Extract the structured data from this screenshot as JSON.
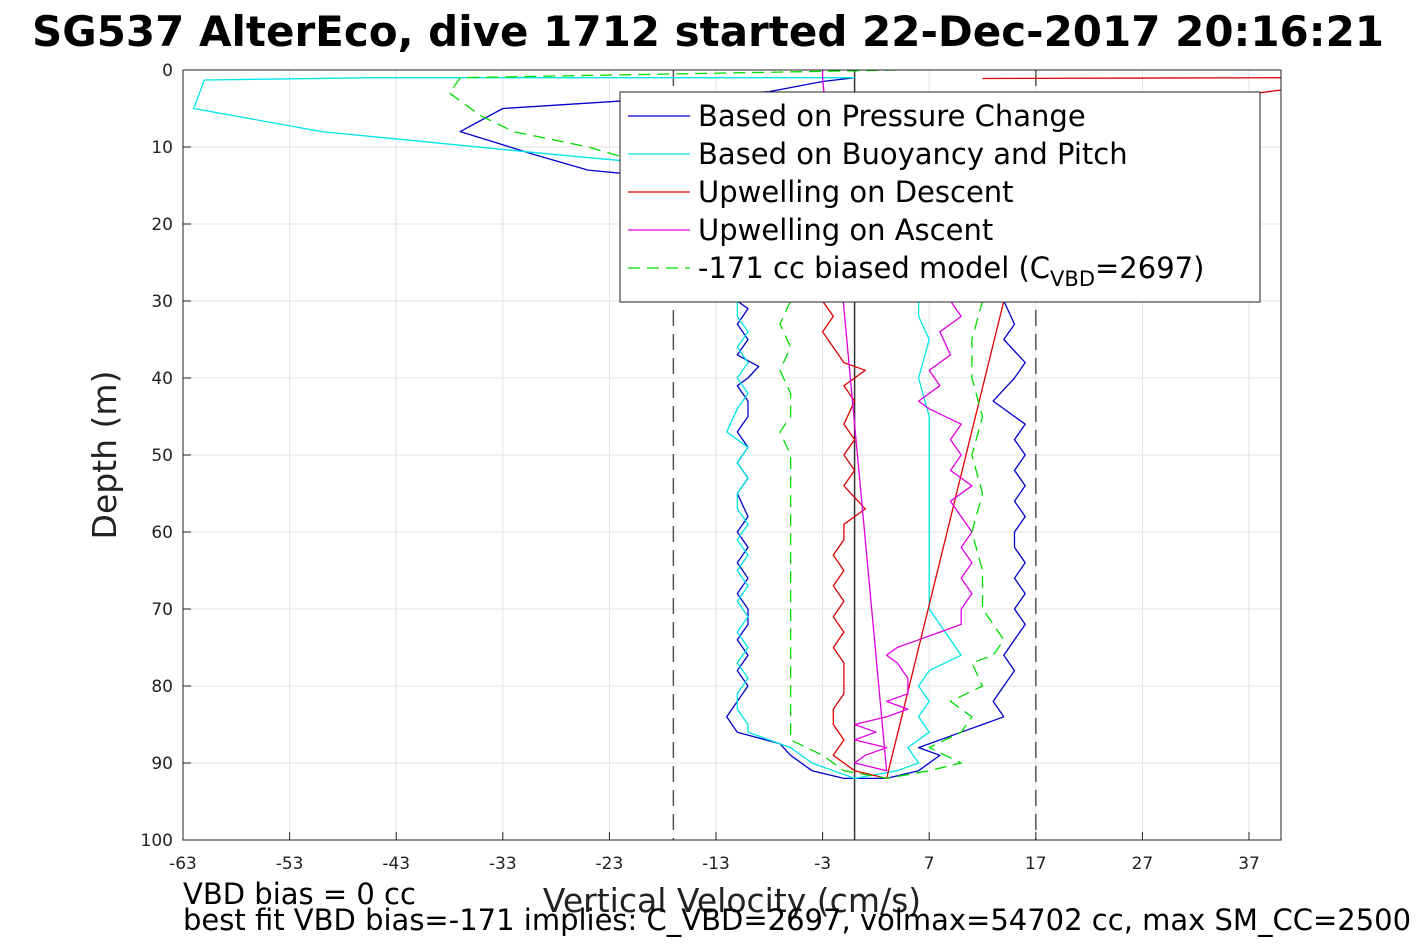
{
  "chart_data": {
    "type": "line",
    "title": "SG537 AlterEco, dive 1712 started 22-Dec-2017 20:16:21",
    "xlabel": "Vertical Velocity (cm/s)",
    "ylabel": "Depth (m)",
    "xlim": [
      -63,
      40
    ],
    "ylim": [
      0,
      100
    ],
    "y_reversed": true,
    "grid": true,
    "xticks": [
      "-63",
      "-53",
      "-43",
      "-33",
      "-23",
      "-13",
      "-3",
      "7",
      "17",
      "27",
      "37"
    ],
    "yticks": [
      "0",
      "10",
      "20",
      "30",
      "40",
      "50",
      "60",
      "70",
      "80",
      "90",
      "100"
    ],
    "legend_position": "top-right",
    "reference_lines": [
      {
        "x": -17,
        "style": "dashed",
        "color": "#555555"
      },
      {
        "x": 17,
        "style": "dashed",
        "color": "#555555"
      },
      {
        "x": 0,
        "style": "solid",
        "color": "#333333"
      }
    ],
    "series": [
      {
        "name": "Based on Pressure Change",
        "color": "#0000cc",
        "style": "solid",
        "points": [
          [
            0,
            1
          ],
          [
            -3,
            1.5
          ],
          [
            -8,
            2.8
          ],
          [
            -33,
            5
          ],
          [
            -37,
            8
          ],
          [
            -30,
            11
          ],
          [
            -25,
            13
          ],
          [
            -16,
            14.2
          ],
          [
            -11,
            30
          ],
          [
            -10,
            31
          ],
          [
            -11,
            33
          ],
          [
            -10,
            35
          ],
          [
            -11,
            37
          ],
          [
            -9,
            38.5
          ],
          [
            -10,
            40
          ],
          [
            -11,
            41
          ],
          [
            -10,
            43
          ],
          [
            -10,
            45
          ],
          [
            -11,
            47
          ],
          [
            -10,
            49
          ],
          [
            -11,
            51
          ],
          [
            -10,
            53
          ],
          [
            -11,
            55
          ],
          [
            -10,
            58
          ],
          [
            -11,
            60
          ],
          [
            -10,
            62
          ],
          [
            -11,
            64
          ],
          [
            -10,
            66
          ],
          [
            -11,
            68
          ],
          [
            -10,
            70
          ],
          [
            -10,
            72
          ],
          [
            -11,
            74
          ],
          [
            -10,
            76
          ],
          [
            -11,
            78
          ],
          [
            -10,
            80
          ],
          [
            -11,
            82
          ],
          [
            -12,
            84
          ],
          [
            -11,
            86
          ],
          [
            -7,
            87.5
          ],
          [
            -6,
            89
          ],
          [
            -4,
            91
          ],
          [
            -1,
            92
          ],
          [
            3,
            92
          ],
          [
            6,
            91
          ],
          [
            8,
            89
          ],
          [
            6,
            88
          ],
          [
            10,
            86
          ],
          [
            12,
            85
          ],
          [
            14,
            84
          ],
          [
            13,
            82
          ],
          [
            14,
            80
          ],
          [
            15,
            78
          ],
          [
            14,
            76
          ],
          [
            15,
            74
          ],
          [
            16,
            72
          ],
          [
            15,
            70
          ],
          [
            16,
            68
          ],
          [
            15,
            66
          ],
          [
            16,
            64
          ],
          [
            15,
            62
          ],
          [
            15,
            60
          ],
          [
            16,
            58
          ],
          [
            15,
            56
          ],
          [
            16,
            54
          ],
          [
            15,
            52
          ],
          [
            16,
            50
          ],
          [
            15,
            48
          ],
          [
            16,
            46
          ],
          [
            13,
            43
          ],
          [
            15,
            40
          ],
          [
            16,
            38
          ],
          [
            14,
            35
          ],
          [
            15,
            33
          ],
          [
            14,
            30
          ]
        ]
      },
      {
        "name": "Based on Buoyancy and Pitch",
        "color": "#00e6e6",
        "style": "solid",
        "points": [
          [
            0,
            1
          ],
          [
            -45,
            1
          ],
          [
            -61,
            1.3
          ],
          [
            -62,
            5
          ],
          [
            -50,
            8
          ],
          [
            -28,
            11
          ],
          [
            -20,
            12
          ],
          [
            -15,
            14
          ],
          [
            -11,
            30
          ],
          [
            -11,
            32
          ],
          [
            -10,
            34
          ],
          [
            -11,
            36
          ],
          [
            -10,
            38
          ],
          [
            -11,
            40
          ],
          [
            -10,
            42
          ],
          [
            -11,
            44
          ],
          [
            -12,
            47
          ],
          [
            -10,
            49
          ],
          [
            -11,
            51
          ],
          [
            -10,
            53
          ],
          [
            -11,
            55
          ],
          [
            -11,
            57
          ],
          [
            -10,
            59
          ],
          [
            -11,
            61
          ],
          [
            -10,
            63
          ],
          [
            -11,
            65
          ],
          [
            -10,
            67
          ],
          [
            -11,
            69
          ],
          [
            -10,
            71
          ],
          [
            -11,
            73
          ],
          [
            -10,
            75
          ],
          [
            -11,
            77
          ],
          [
            -10,
            79
          ],
          [
            -11,
            81
          ],
          [
            -11,
            83
          ],
          [
            -10,
            85
          ],
          [
            -10,
            86
          ],
          [
            -6,
            88
          ],
          [
            -4,
            90
          ],
          [
            -2,
            91
          ],
          [
            0,
            92
          ],
          [
            4,
            91
          ],
          [
            6,
            90
          ],
          [
            5,
            88
          ],
          [
            7,
            86
          ],
          [
            6,
            84
          ],
          [
            7,
            82
          ],
          [
            6,
            80
          ],
          [
            7,
            78
          ],
          [
            10,
            76
          ],
          [
            9,
            74
          ],
          [
            8,
            72
          ],
          [
            7,
            70
          ],
          [
            7,
            65
          ],
          [
            7,
            60
          ],
          [
            7,
            55
          ],
          [
            7,
            50
          ],
          [
            7,
            45
          ],
          [
            6,
            40
          ],
          [
            7,
            35
          ],
          [
            6,
            32
          ],
          [
            6,
            30
          ]
        ]
      },
      {
        "name": "Upwelling on Descent",
        "color": "#e00000",
        "style": "solid",
        "points": [
          [
            -3,
            30
          ],
          [
            -2,
            32
          ],
          [
            -3,
            34
          ],
          [
            -2,
            36
          ],
          [
            -1,
            38
          ],
          [
            1,
            39
          ],
          [
            -1,
            41
          ],
          [
            0,
            43
          ],
          [
            -1,
            46
          ],
          [
            0,
            48
          ],
          [
            -1,
            50
          ],
          [
            0,
            52
          ],
          [
            -1,
            54
          ],
          [
            1,
            57
          ],
          [
            -1,
            59
          ],
          [
            -1,
            61
          ],
          [
            -2,
            63
          ],
          [
            -1,
            65
          ],
          [
            -2,
            67
          ],
          [
            -1,
            69
          ],
          [
            -2,
            71
          ],
          [
            -1,
            73
          ],
          [
            -2,
            75
          ],
          [
            -1,
            77
          ],
          [
            -1,
            79
          ],
          [
            -1,
            81
          ],
          [
            -2,
            83
          ],
          [
            -2,
            85
          ],
          [
            -1,
            87
          ],
          [
            -2,
            89
          ],
          [
            0,
            91
          ],
          [
            3,
            92
          ],
          [
            14,
            30
          ]
        ]
      },
      {
        "name": "Upwelling on Ascent",
        "color": "#e000e0",
        "style": "solid",
        "points": [
          [
            -3,
            0
          ],
          [
            -3,
            1
          ],
          [
            3,
            91
          ],
          [
            0,
            90
          ],
          [
            1,
            89
          ],
          [
            3,
            88
          ],
          [
            0,
            87
          ],
          [
            2,
            86
          ],
          [
            0,
            85
          ],
          [
            3,
            84
          ],
          [
            5,
            83
          ],
          [
            3,
            82
          ],
          [
            5,
            81
          ],
          [
            5,
            79
          ],
          [
            4,
            77
          ],
          [
            3,
            76
          ],
          [
            4,
            75
          ],
          [
            6,
            74
          ],
          [
            8,
            73
          ],
          [
            10,
            72
          ],
          [
            10,
            70
          ],
          [
            11,
            68
          ],
          [
            10,
            66
          ],
          [
            11,
            64
          ],
          [
            10,
            62
          ],
          [
            11,
            60
          ],
          [
            10,
            58
          ],
          [
            9,
            56
          ],
          [
            11,
            54
          ],
          [
            9,
            52
          ],
          [
            10,
            50
          ],
          [
            9,
            48
          ],
          [
            10,
            46
          ],
          [
            7,
            44
          ],
          [
            6,
            43
          ],
          [
            8,
            41
          ],
          [
            7,
            39
          ],
          [
            9,
            37
          ],
          [
            8,
            34
          ],
          [
            10,
            32
          ],
          [
            9,
            30
          ]
        ]
      },
      {
        "name": "-171 cc biased model (C",
        "legend_subscript": "VBD",
        "legend_suffix": "=2697)",
        "color": "#00dd00",
        "style": "dashed",
        "points": [
          [
            4,
            0
          ],
          [
            -37,
            1
          ],
          [
            -38,
            3
          ],
          [
            -35,
            6
          ],
          [
            -32,
            8
          ],
          [
            -25,
            10
          ],
          [
            -20,
            12
          ],
          [
            -15,
            14
          ],
          [
            -6,
            30
          ],
          [
            -7,
            33
          ],
          [
            -6,
            36
          ],
          [
            -7,
            39
          ],
          [
            -6,
            42
          ],
          [
            -6,
            45
          ],
          [
            -7,
            47
          ],
          [
            -6,
            50
          ],
          [
            -6,
            55
          ],
          [
            -6,
            60
          ],
          [
            -6,
            65
          ],
          [
            -6,
            70
          ],
          [
            -6,
            75
          ],
          [
            -6,
            80
          ],
          [
            -6,
            85
          ],
          [
            -6,
            87
          ],
          [
            -3,
            89
          ],
          [
            -1,
            91
          ],
          [
            3,
            92
          ],
          [
            7,
            91
          ],
          [
            10,
            90
          ],
          [
            7,
            88
          ],
          [
            10,
            86
          ],
          [
            11,
            84
          ],
          [
            9,
            82
          ],
          [
            12,
            80
          ],
          [
            11,
            77
          ],
          [
            13,
            76
          ],
          [
            14,
            74
          ],
          [
            13,
            72
          ],
          [
            12,
            70
          ],
          [
            12,
            65
          ],
          [
            11,
            60
          ],
          [
            12,
            55
          ],
          [
            11,
            50
          ],
          [
            12,
            45
          ],
          [
            11,
            40
          ],
          [
            11,
            35
          ],
          [
            12,
            30
          ]
        ]
      }
    ]
  },
  "footnotes": {
    "line1": "VBD bias = 0 cc",
    "line2": "best fit VBD bias=-171 implies: C_VBD=2697, volmax=54702 cc, max SM_CC=2500"
  }
}
